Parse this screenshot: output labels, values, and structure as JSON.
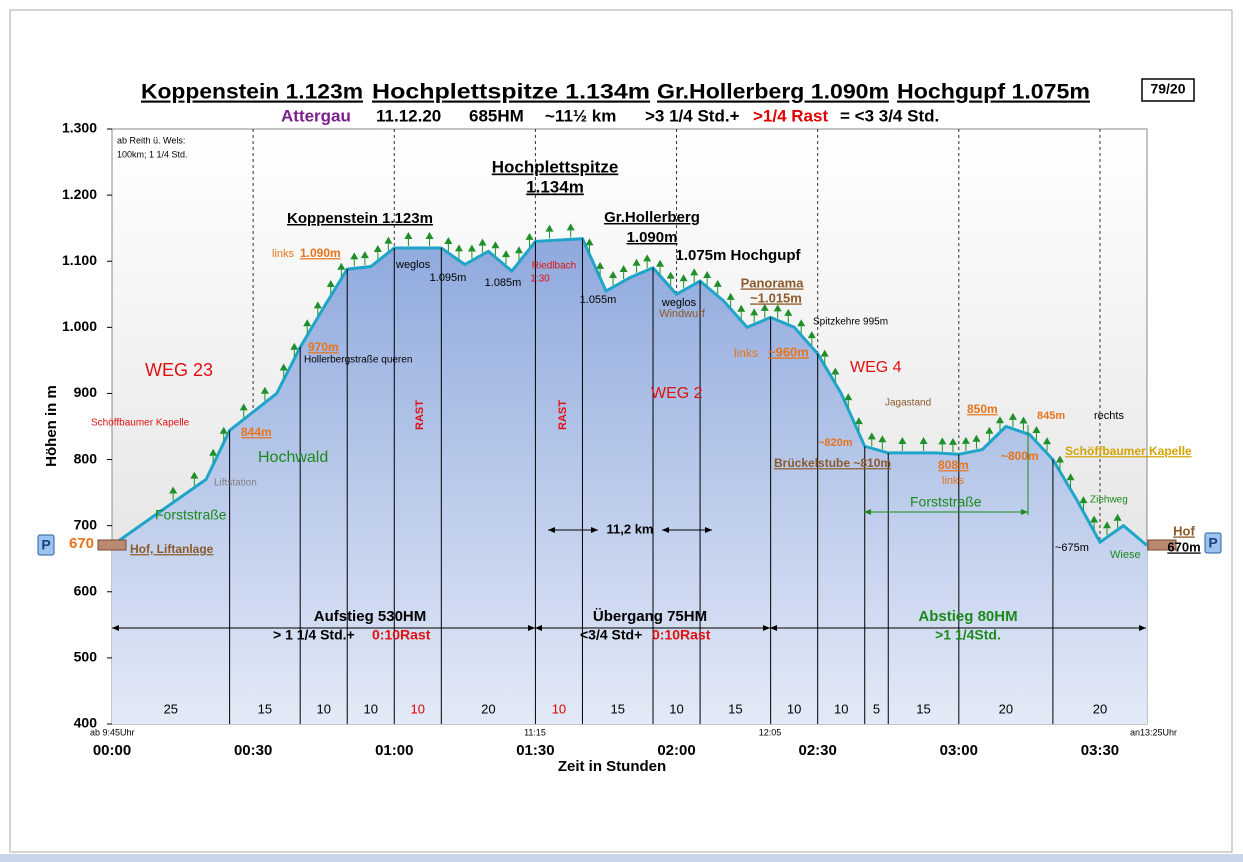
{
  "chart_data": {
    "type": "area",
    "title": [
      "Koppenstein 1.123m",
      "Hochplettspitze 1.134m",
      "Gr.Hollerberg 1.090m",
      "Hochgupf 1.075m"
    ],
    "subtitle": [
      "Attergau",
      "11.12.20",
      "685HM",
      "~11½ km",
      ">3 1/4 Std.+",
      ">1/4 Rast",
      "= <3 3/4 Std."
    ],
    "badge": "79/20",
    "x_label": "Zeit in Stunden",
    "y_label": "Höhen in m",
    "color": "#1ea5c9",
    "x": [
      0,
      10,
      20,
      25,
      35,
      40,
      45,
      50,
      55,
      60,
      70,
      75,
      80,
      85,
      90,
      100,
      105,
      110,
      115,
      120,
      125,
      130,
      135,
      140,
      145,
      150,
      155,
      160,
      165,
      175,
      180,
      185,
      190,
      195,
      200,
      205,
      210,
      215,
      220
    ],
    "values": [
      670,
      720,
      770,
      844,
      900,
      970,
      1030,
      1088,
      1092,
      1120,
      1120,
      1095,
      1115,
      1085,
      1130,
      1134,
      1055,
      1075,
      1090,
      1050,
      1070,
      1040,
      1000,
      1015,
      1000,
      960,
      900,
      820,
      810,
      810,
      808,
      815,
      850,
      838,
      800,
      740,
      675,
      700,
      670
    ],
    "xlim": [
      0,
      220
    ],
    "xticks": [
      {
        "value": 0,
        "label": "00:00"
      },
      {
        "value": 30,
        "label": "00:30"
      },
      {
        "value": 60,
        "label": "01:00"
      },
      {
        "value": 90,
        "label": "01:30"
      },
      {
        "value": 120,
        "label": "02:00"
      },
      {
        "value": 150,
        "label": "02:30"
      },
      {
        "value": 180,
        "label": "03:00"
      },
      {
        "value": 210,
        "label": "03:30"
      }
    ],
    "ylim": [
      400,
      1300
    ],
    "yticks": [
      400,
      500,
      600,
      700,
      800,
      900,
      {
        "value": 1000,
        "label": "1.000"
      },
      {
        "value": 1100,
        "label": "1.100"
      },
      {
        "value": 1200,
        "label": "1.200"
      },
      {
        "value": 1300,
        "label": "1.300"
      }
    ],
    "grid": true,
    "segments": [
      25,
      15,
      10,
      10,
      10,
      20,
      10,
      15,
      10,
      15,
      10,
      10,
      5,
      15,
      20,
      20
    ],
    "annotations": [
      "ab Reith ü. Wels:",
      "100km; 1 1/4 Std.",
      "Hochplettspitze",
      "1.134m",
      "Koppenstein 1.123m",
      "Gr.Hollerberg",
      "1.090m",
      "1.075m Hochgupf",
      "links",
      "1.090m",
      "weglos",
      "1.095m",
      "1.085m",
      "Riedlbach",
      "1:30",
      "1.055m",
      "weglos",
      "Windwurf",
      "Panorama",
      "~1.015m",
      "Spitzkehre 995m",
      "970m",
      "Hollerbergstraße queren",
      "links",
      "~960m",
      "WEG 23",
      "WEG 4",
      "RAST",
      "RAST",
      "WEG 2",
      "Jagastand",
      "850m",
      "845m",
      "rechts",
      "Schöffbaumer Kapelle",
      "844m",
      "~820m",
      "Brückelstube ~810m",
      "808m",
      "links",
      "~800m",
      "Schöffbaumer Kapelle",
      "Hochwald",
      "Liftstation",
      "Forststraße",
      "Forststraße",
      "Ziehweg",
      "11,2 km",
      "Hof",
      "670m",
      "670",
      "Hof, Liftanlage",
      "~675m",
      "Wiese",
      "P",
      "P",
      "Aufstieg 530HM",
      "> 1 1/4 Std.+ ",
      "0:10Rast",
      "Übergang 75HM",
      "<3/4 Std+",
      "0:10Rast",
      "Abstieg 80HM",
      ">1 1/4Std.",
      "ab 9:45Uhr",
      "11:15",
      "12:05",
      "an13:25Uhr"
    ]
  }
}
